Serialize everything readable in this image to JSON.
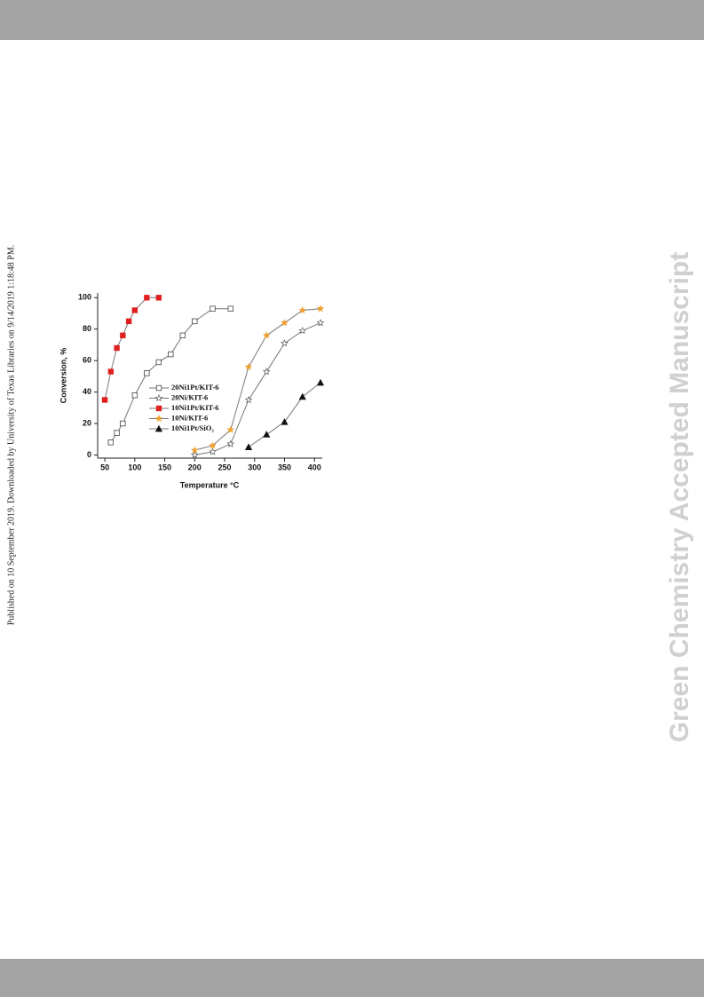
{
  "sidebar": "Published on 10 September 2019. Downloaded by University of Texas Libraries on 9/14/2019 1:18:48 PM.",
  "watermark": "Green Chemistry Accepted Manuscript",
  "chart_data": {
    "type": "line",
    "xlabel": "Temperature °C",
    "ylabel": "Conversion, %",
    "xlim": [
      38,
      413
    ],
    "xticks": [
      50,
      100,
      150,
      200,
      250,
      300,
      350,
      400
    ],
    "ylim": [
      -2,
      103
    ],
    "yticks": [
      0,
      20,
      40,
      60,
      80,
      100
    ],
    "line_color": "#777777",
    "series": [
      {
        "name": "20Ni1Pt/KIT-6",
        "color": "#444444",
        "marker": "open-square",
        "x": [
          60,
          70,
          80,
          100,
          120,
          140,
          160,
          180,
          200,
          230,
          260
        ],
        "values": [
          8,
          14,
          20,
          38,
          52,
          59,
          64,
          76,
          85,
          93,
          93
        ]
      },
      {
        "name": "20Ni/KIT-6",
        "color": "#444444",
        "marker": "open-star",
        "x": [
          200,
          230,
          260,
          290,
          320,
          350,
          380,
          410
        ],
        "values": [
          0,
          2,
          7,
          35,
          53,
          71,
          79,
          84
        ]
      },
      {
        "name": "10Ni1Pt/KIT-6",
        "color": "#e02020",
        "marker": "square",
        "x": [
          50,
          60,
          70,
          80,
          90,
          100,
          120,
          140
        ],
        "values": [
          35,
          53,
          68,
          76,
          85,
          92,
          100,
          100
        ]
      },
      {
        "name": "10Ni/KIT-6",
        "color": "#f0a030",
        "marker": "star",
        "x": [
          200,
          230,
          260,
          290,
          320,
          350,
          380,
          410
        ],
        "values": [
          3,
          6,
          16,
          56,
          76,
          84,
          92,
          93
        ]
      },
      {
        "name": "10Ni1Pt/SiO₂",
        "color": "#111111",
        "marker": "triangle",
        "x": [
          290,
          320,
          350,
          380,
          410
        ],
        "values": [
          5,
          13,
          21,
          37,
          46
        ]
      }
    ]
  }
}
